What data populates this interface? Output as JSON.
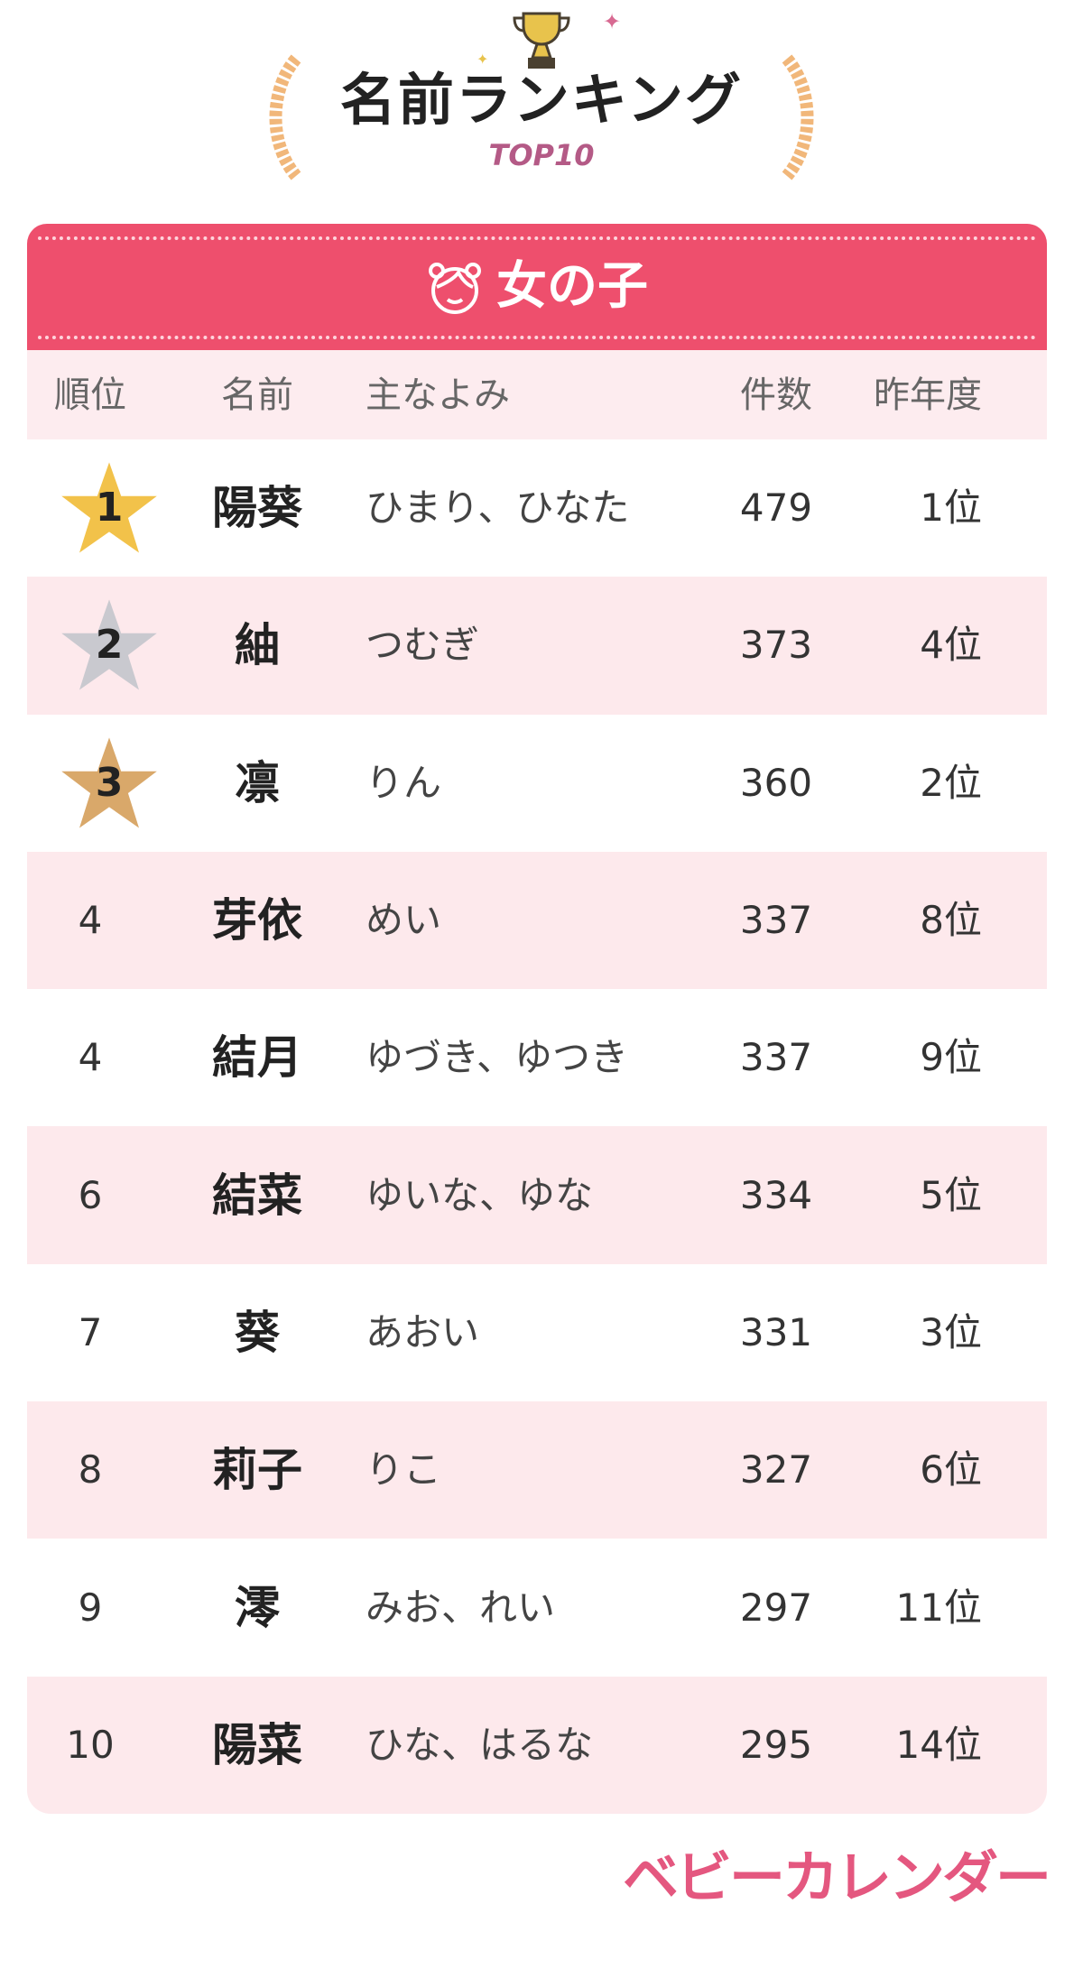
{
  "header": {
    "title": "名前ランキング",
    "subtitle": "TOP10",
    "icon": "trophy-icon"
  },
  "category": {
    "label": "女の子",
    "icon": "girl-face-icon",
    "color": "#ee4f6d"
  },
  "table": {
    "columns": [
      "順位",
      "名前",
      "主なよみ",
      "件数",
      "昨年度"
    ],
    "rows": [
      {
        "rank": "1",
        "name": "陽葵",
        "reading": "ひまり、ひなた",
        "count": "479",
        "prev": "1位",
        "medal": "gold"
      },
      {
        "rank": "2",
        "name": "紬",
        "reading": "つむぎ",
        "count": "373",
        "prev": "4位",
        "medal": "silver"
      },
      {
        "rank": "3",
        "name": "凛",
        "reading": "りん",
        "count": "360",
        "prev": "2位",
        "medal": "bronze"
      },
      {
        "rank": "4",
        "name": "芽依",
        "reading": "めい",
        "count": "337",
        "prev": "8位"
      },
      {
        "rank": "4",
        "name": "結月",
        "reading": "ゆづき、ゆつき",
        "count": "337",
        "prev": "9位"
      },
      {
        "rank": "6",
        "name": "結菜",
        "reading": "ゆいな、ゆな",
        "count": "334",
        "prev": "5位"
      },
      {
        "rank": "7",
        "name": "葵",
        "reading": "あおい",
        "count": "331",
        "prev": "3位"
      },
      {
        "rank": "8",
        "name": "莉子",
        "reading": "りこ",
        "count": "327",
        "prev": "6位"
      },
      {
        "rank": "9",
        "name": "澪",
        "reading": "みお、れい",
        "count": "297",
        "prev": "11位"
      },
      {
        "rank": "10",
        "name": "陽菜",
        "reading": "ひな、はるな",
        "count": "295",
        "prev": "14位"
      }
    ]
  },
  "colors": {
    "gold": "#f2c24a",
    "silver": "#c9c9cf",
    "bronze": "#d9a86a",
    "row_alt": "#fde9ec"
  },
  "footer": {
    "logo": "ベビーカレンダー"
  }
}
